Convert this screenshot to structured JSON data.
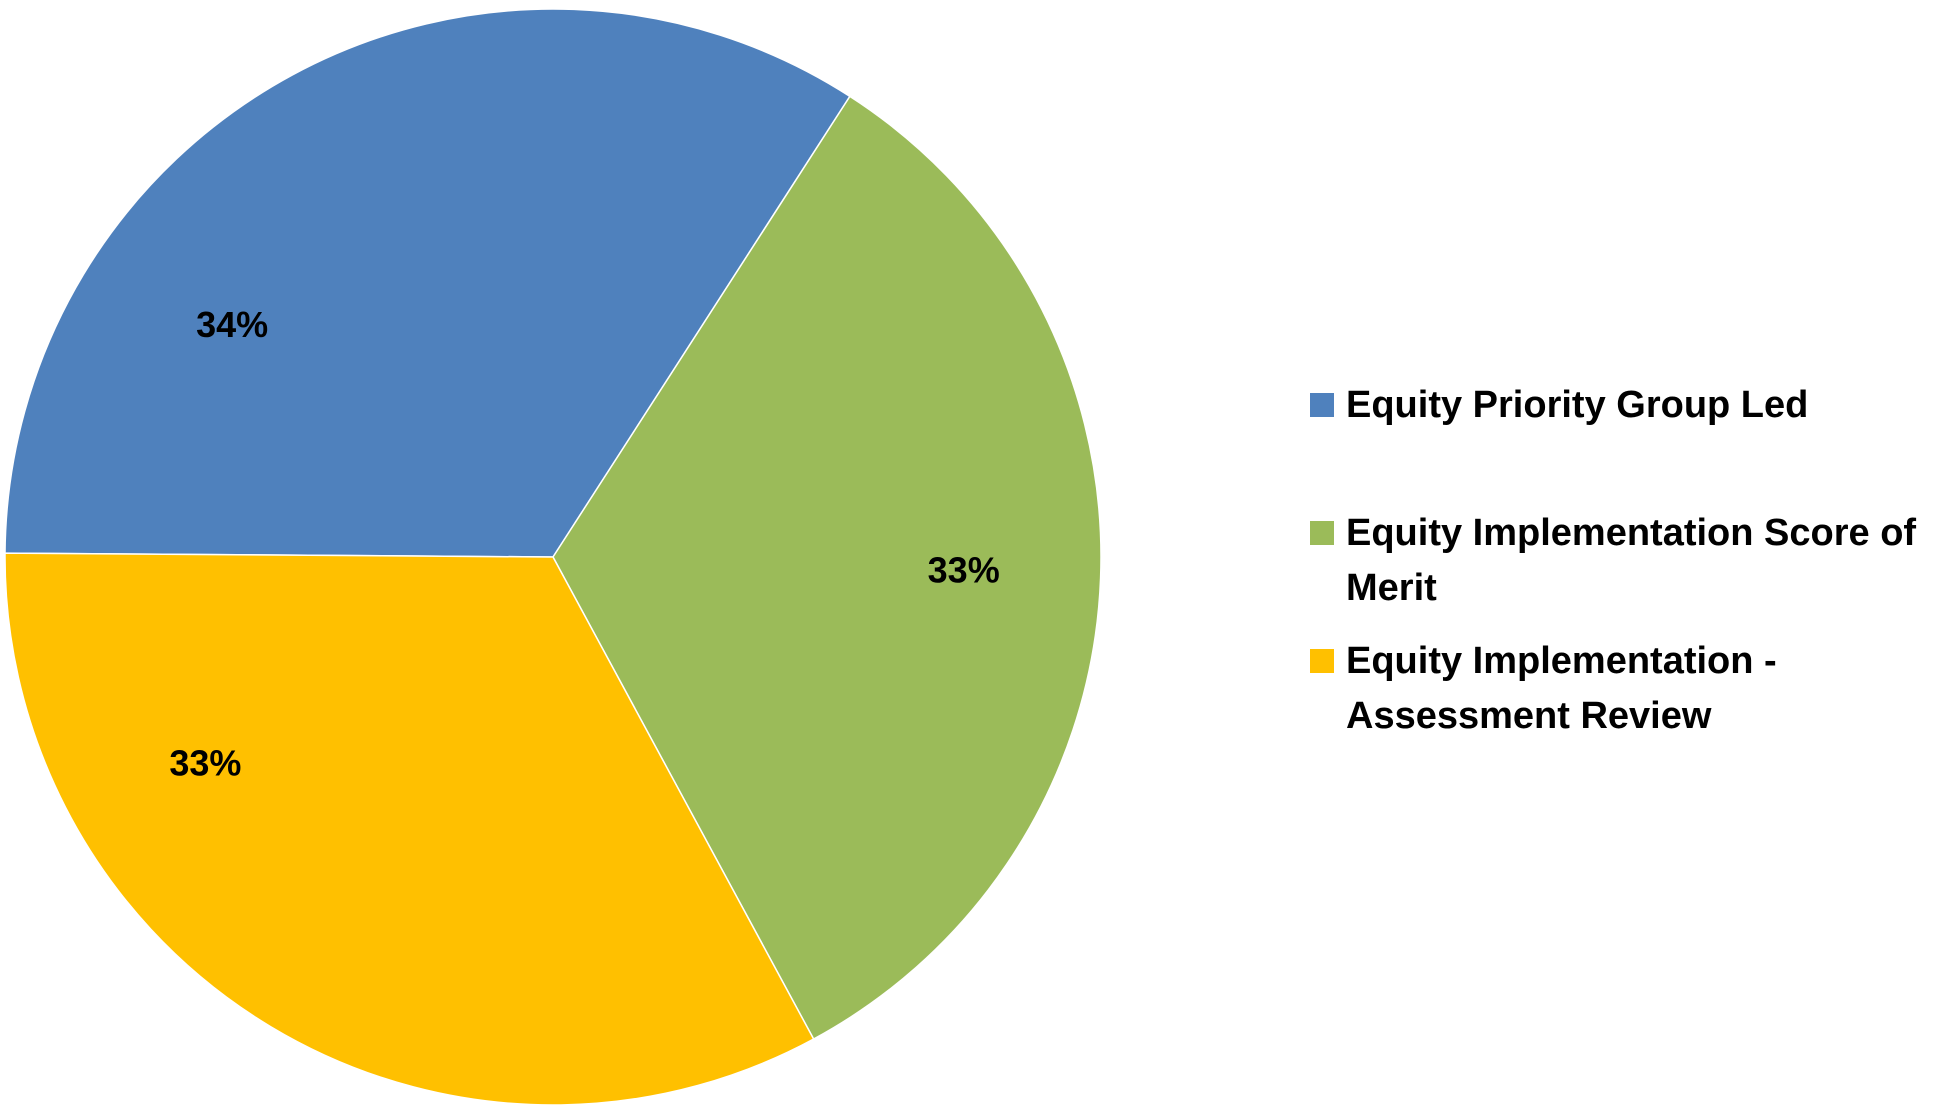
{
  "chart_data": {
    "type": "pie",
    "title": "",
    "categories": [
      "Equity Priority Group Led",
      "Equity Implementation Score of Merit",
      "Equity Implementation - Assessment Review"
    ],
    "values": [
      34,
      33,
      33
    ],
    "data_labels": [
      "34%",
      "33%",
      "33%"
    ],
    "colors": [
      "#4F81BD",
      "#9BBB59",
      "#FFC000"
    ],
    "legend": {
      "position": "right",
      "entries": [
        "Equity Priority Group Led",
        "Equity Implementation Score of Merit",
        "Equity Implementation - Assessment Review"
      ]
    }
  }
}
